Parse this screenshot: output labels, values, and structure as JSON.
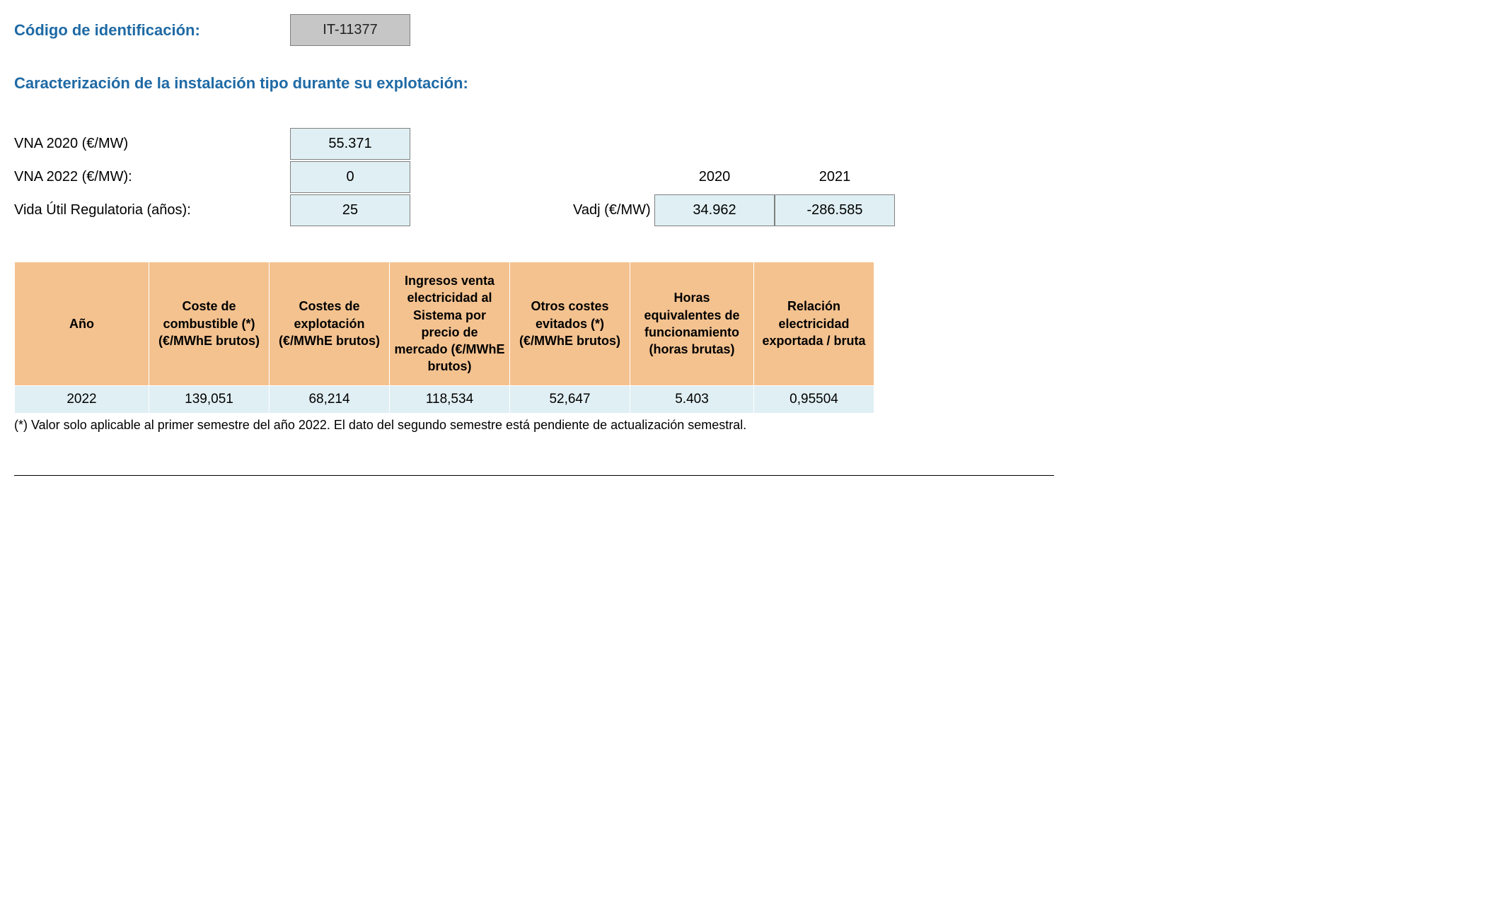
{
  "header": {
    "id_label": "Código de identificación:",
    "id_value": "IT-11377"
  },
  "subtitle": "Caracterización de la instalación tipo durante su explotación:",
  "params": {
    "vna2020_label": "VNA 2020 (€/MW)",
    "vna2020_value": "55.371",
    "vna2022_label": "VNA 2022 (€/MW):",
    "vna2022_value": "0",
    "vida_util_label": "Vida Útil Regulatoria (años):",
    "vida_util_value": "25"
  },
  "vadj": {
    "label": "Vadj (€/MW)",
    "years": [
      "2020",
      "2021"
    ],
    "values": [
      "34.962",
      "-286.585"
    ]
  },
  "table": {
    "type": "table",
    "header_bg": "#f4c28f",
    "row_bg": "#e0eff3",
    "border_color": "#ffffff",
    "columns": [
      "Año",
      "Coste de combustible (*) (€/MWhE brutos)",
      "Costes de explotación (€/MWhE brutos)",
      "Ingresos venta electricidad al Sistema por precio de mercado (€/MWhE brutos)",
      "Otros costes evitados (*) (€/MWhE brutos)",
      "Horas equivalentes de funcionamiento (horas brutas)",
      "Relación electricidad exportada / bruta"
    ],
    "rows": [
      [
        "2022",
        "139,051",
        "68,214",
        "118,534",
        "52,647",
        "5.403",
        "0,95504"
      ]
    ],
    "col_widths": [
      "190px",
      "170px",
      "170px",
      "170px",
      "170px",
      "175px",
      "170px"
    ]
  },
  "footnote": "(*) Valor solo aplicable al primer semestre del año 2022. El dato del segundo semestre está pendiente de actualización semestral.",
  "colors": {
    "accent": "#1f6aa5",
    "param_bg": "#e0eff3",
    "id_bg": "#c6c6c6",
    "border": "#808080"
  }
}
